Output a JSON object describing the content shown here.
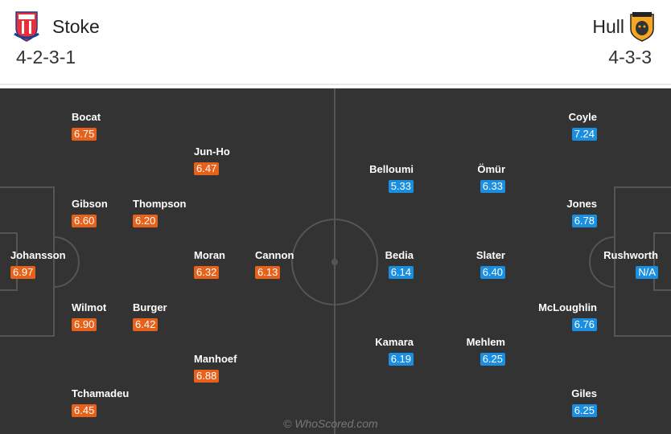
{
  "home": {
    "name": "Stoke",
    "formation": "4-2-3-1",
    "color": "#e8611a",
    "crest": "stoke-city-crest",
    "players": [
      {
        "name": "Bocat",
        "rating": "6.75"
      },
      {
        "name": "Jun-Ho",
        "rating": "6.47"
      },
      {
        "name": "Gibson",
        "rating": "6.60"
      },
      {
        "name": "Thompson",
        "rating": "6.20"
      },
      {
        "name": "Johansson",
        "rating": "6.97"
      },
      {
        "name": "Moran",
        "rating": "6.32"
      },
      {
        "name": "Cannon",
        "rating": "6.13"
      },
      {
        "name": "Wilmot",
        "rating": "6.90"
      },
      {
        "name": "Burger",
        "rating": "6.42"
      },
      {
        "name": "Manhoef",
        "rating": "6.88"
      },
      {
        "name": "Tchamadeu",
        "rating": "6.45"
      }
    ]
  },
  "away": {
    "name": "Hull",
    "formation": "4-3-3",
    "color": "#1a8ee0",
    "crest": "hull-city-crest",
    "players": [
      {
        "name": "Coyle",
        "rating": "7.24"
      },
      {
        "name": "Belloumi",
        "rating": "5.33"
      },
      {
        "name": "Ömür",
        "rating": "6.33"
      },
      {
        "name": "Jones",
        "rating": "6.78"
      },
      {
        "name": "Bedia",
        "rating": "6.14"
      },
      {
        "name": "Slater",
        "rating": "6.40"
      },
      {
        "name": "Rushworth",
        "rating": "N/A"
      },
      {
        "name": "McLoughlin",
        "rating": "6.76"
      },
      {
        "name": "Kamara",
        "rating": "6.19"
      },
      {
        "name": "Mehlem",
        "rating": "6.25"
      },
      {
        "name": "Giles",
        "rating": "6.25"
      }
    ]
  },
  "watermark": "© WhoScored.com"
}
